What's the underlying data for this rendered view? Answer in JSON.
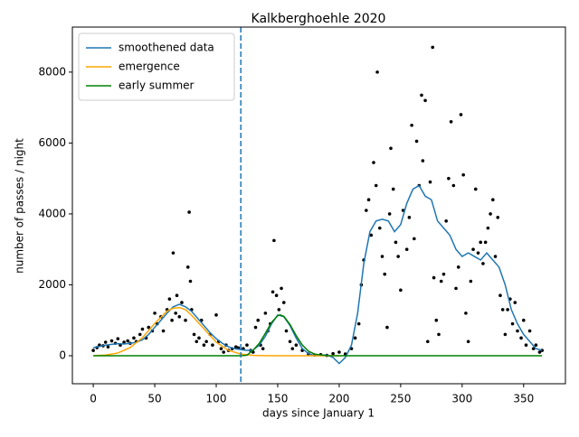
{
  "chart_data": {
    "type": "line",
    "title": "Kalkberghoehle 2020",
    "xlabel": "days since January 1",
    "ylabel": "number of passes / night",
    "xlim": [
      -17,
      384
    ],
    "ylim": [
      -790,
      9270
    ],
    "xticks": [
      0,
      50,
      100,
      150,
      200,
      250,
      300,
      350
    ],
    "yticks": [
      0,
      2000,
      4000,
      6000,
      8000
    ],
    "legend": "upper left",
    "vline": {
      "x": 120,
      "color": "#1f77b4"
    },
    "scatter": {
      "color": "#000000",
      "x": [
        0,
        3,
        5,
        8,
        10,
        12,
        15,
        18,
        20,
        22,
        25,
        28,
        30,
        33,
        35,
        38,
        40,
        43,
        45,
        48,
        50,
        52,
        55,
        57,
        60,
        62,
        64,
        65,
        67,
        68,
        70,
        72,
        75,
        77,
        78,
        79,
        80,
        82,
        84,
        86,
        88,
        90,
        92,
        95,
        97,
        100,
        102,
        104,
        106,
        108,
        110,
        113,
        116,
        118,
        122,
        125,
        128,
        130,
        132,
        134,
        136,
        138,
        140,
        142,
        144,
        146,
        147,
        149,
        151,
        153,
        155,
        157,
        160,
        162,
        165,
        170,
        175,
        180,
        185,
        190,
        195,
        200,
        205,
        210,
        213,
        216,
        218,
        220,
        222,
        224,
        226,
        228,
        230,
        231,
        233,
        235,
        237,
        239,
        241,
        242,
        244,
        246,
        248,
        250,
        252,
        255,
        257,
        259,
        261,
        263,
        265,
        267,
        268,
        270,
        272,
        274,
        276,
        277,
        279,
        281,
        283,
        285,
        287,
        289,
        291,
        293,
        295,
        297,
        299,
        301,
        303,
        305,
        307,
        309,
        311,
        313,
        315,
        317,
        319,
        321,
        323,
        325,
        327,
        329,
        331,
        333,
        335,
        337,
        339,
        341,
        343,
        345,
        348,
        350,
        352,
        355,
        358,
        360,
        363,
        365
      ],
      "values": [
        150,
        230,
        300,
        280,
        380,
        250,
        420,
        350,
        480,
        300,
        380,
        420,
        350,
        500,
        400,
        600,
        750,
        500,
        800,
        700,
        1200,
        900,
        1100,
        700,
        1300,
        1600,
        1000,
        2900,
        1200,
        1700,
        1100,
        1500,
        1000,
        2500,
        4050,
        2100,
        1300,
        600,
        400,
        500,
        1000,
        300,
        400,
        600,
        300,
        1150,
        400,
        200,
        100,
        300,
        150,
        200,
        250,
        220,
        200,
        300,
        150,
        100,
        800,
        1000,
        300,
        200,
        1200,
        700,
        900,
        1800,
        3250,
        1700,
        1300,
        1900,
        1500,
        700,
        400,
        200,
        300,
        150,
        50,
        20,
        30,
        10,
        60,
        100,
        50,
        200,
        500,
        900,
        2000,
        2700,
        4100,
        4400,
        3400,
        5450,
        4800,
        8000,
        3600,
        2800,
        2300,
        800,
        4000,
        5850,
        4700,
        3200,
        2800,
        1850,
        4100,
        3000,
        3900,
        6500,
        3300,
        6050,
        4800,
        7350,
        5500,
        7200,
        400,
        4900,
        8700,
        2200,
        1000,
        600,
        2100,
        2300,
        3800,
        5000,
        6600,
        4800,
        1900,
        2500,
        6800,
        5100,
        1200,
        400,
        2100,
        3000,
        4700,
        2900,
        3200,
        2600,
        3200,
        3600,
        4000,
        4400,
        2800,
        3900,
        1700,
        1300,
        600,
        1300,
        1600,
        900,
        1500,
        700,
        500,
        1000,
        300,
        700,
        200,
        300,
        100,
        150
      ]
    },
    "series": [
      {
        "name": "smoothened data",
        "color": "#1f77b4",
        "x": [
          0,
          5,
          10,
          15,
          20,
          25,
          30,
          35,
          40,
          45,
          50,
          55,
          60,
          65,
          70,
          75,
          80,
          85,
          90,
          95,
          100,
          105,
          110,
          115,
          120,
          125,
          130,
          135,
          140,
          145,
          150,
          155,
          160,
          165,
          170,
          175,
          180,
          185,
          190,
          195,
          200,
          205,
          210,
          215,
          220,
          225,
          230,
          235,
          240,
          245,
          250,
          255,
          260,
          265,
          270,
          275,
          280,
          285,
          290,
          295,
          300,
          305,
          310,
          315,
          320,
          325,
          330,
          335,
          340,
          345,
          350,
          355,
          360,
          365
        ],
        "values": [
          230,
          260,
          300,
          320,
          340,
          330,
          350,
          380,
          450,
          600,
          800,
          1000,
          1200,
          1380,
          1450,
          1380,
          1250,
          1050,
          850,
          650,
          480,
          350,
          250,
          200,
          170,
          150,
          160,
          300,
          550,
          900,
          1150,
          1100,
          850,
          500,
          200,
          60,
          0,
          10,
          20,
          -50,
          -220,
          -50,
          300,
          1200,
          2600,
          3500,
          3800,
          3850,
          3800,
          3500,
          3700,
          4300,
          4700,
          4800,
          4500,
          4400,
          3800,
          3600,
          3400,
          3000,
          2800,
          2900,
          2800,
          2700,
          2900,
          2700,
          2500,
          2000,
          1300,
          900,
          600,
          400,
          200,
          150
        ]
      },
      {
        "name": "emergence",
        "color": "#ffa500",
        "x": [
          0,
          10,
          20,
          30,
          40,
          50,
          60,
          65,
          70,
          75,
          80,
          90,
          100,
          110,
          120,
          130,
          140,
          150,
          200
        ],
        "values": [
          4,
          20,
          77,
          230,
          510,
          910,
          1260,
          1340,
          1360,
          1300,
          1140,
          760,
          380,
          150,
          47,
          10,
          2,
          0,
          0
        ]
      },
      {
        "name": "early summer",
        "color": "#008000",
        "x": [
          0,
          120,
          125,
          130,
          135,
          140,
          145,
          150,
          152,
          155,
          160,
          165,
          170,
          175,
          180,
          190,
          200,
          365
        ],
        "values": [
          0,
          0,
          15,
          157,
          350,
          636,
          940,
          1130,
          1150,
          1110,
          880,
          570,
          300,
          130,
          45,
          3,
          0,
          0
        ]
      }
    ]
  }
}
